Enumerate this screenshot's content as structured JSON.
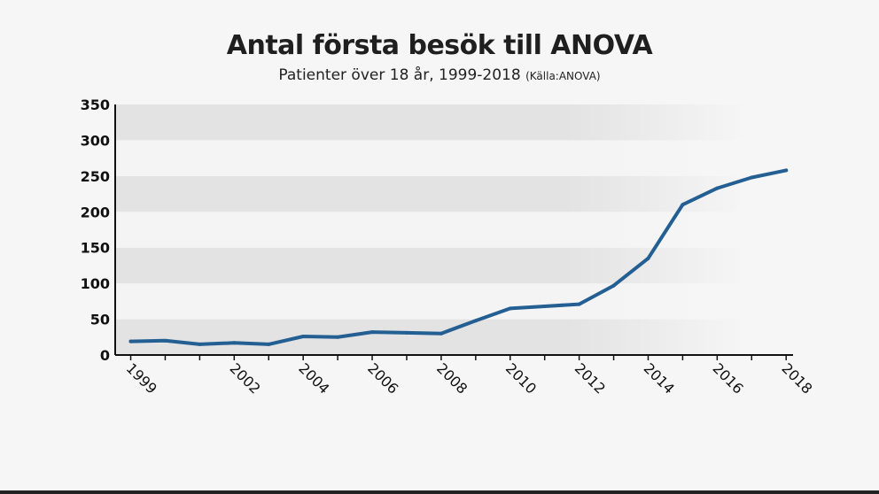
{
  "chart_data": {
    "type": "line",
    "title": "Antal första besök till ANOVA",
    "subtitle": "Patienter över 18 år, 1999-2018",
    "source": "(Källa:ANOVA)",
    "xlabel": "",
    "ylabel": "",
    "ylim": [
      0,
      350
    ],
    "yticks": [
      0,
      50,
      100,
      150,
      200,
      250,
      300,
      350
    ],
    "xlim": [
      1998.55,
      2018.2
    ],
    "xticks": [
      1999,
      2002,
      2004,
      2006,
      2008,
      2010,
      2012,
      2014,
      2016,
      2018
    ],
    "grid": "alternating horizontal bands",
    "legend": "none",
    "line_color": "#235f92",
    "series": [
      {
        "x": [
          1999,
          2000,
          2001,
          2002,
          2003,
          2004,
          2005,
          2006,
          2007,
          2008,
          2009,
          2010,
          2011,
          2012,
          2013,
          2014,
          2015,
          2016,
          2017,
          2018
        ],
        "values": [
          19,
          20,
          15,
          17,
          15,
          26,
          25,
          32,
          31,
          30,
          48,
          65,
          68,
          71,
          97,
          135,
          210,
          233,
          248,
          258
        ]
      }
    ]
  }
}
